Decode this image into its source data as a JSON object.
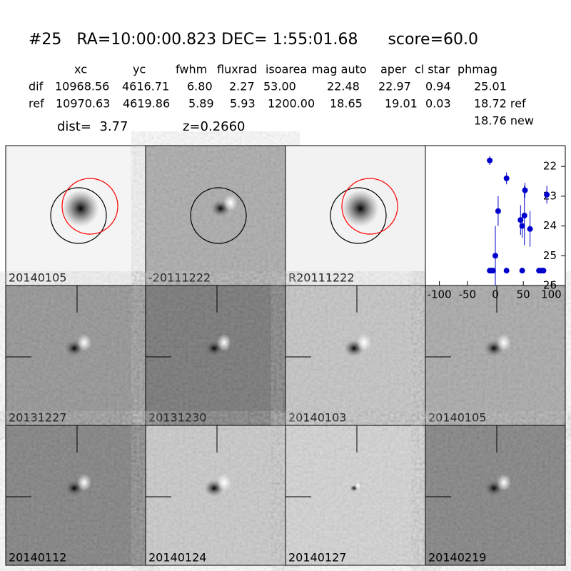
{
  "header": {
    "title": "#25   RA=10:00:00.823 DEC= 1:55:01.68      score=60.0"
  },
  "table": {
    "columns": [
      "xc",
      "yc",
      "fwhm",
      "fluxrad",
      "isoarea",
      "mag auto",
      "aper",
      "cl star",
      "phmag"
    ],
    "rows": [
      {
        "label": "dif",
        "cells": [
          "10968.56",
          "4616.71",
          "6.80",
          "2.27",
          "53.00",
          "22.48",
          "22.97",
          "0.94",
          "25.01"
        ]
      },
      {
        "label": "ref",
        "cells": [
          "10970.63",
          "4619.86",
          "5.89",
          "5.93",
          "1200.00",
          "18.65",
          "19.01",
          "0.03",
          "18.72 ref"
        ]
      }
    ],
    "extra": "18.76 new"
  },
  "info": {
    "dist": "dist=  3.77",
    "z": "z=0.2660"
  },
  "stamps": [
    {
      "label": "20140105"
    },
    {
      "label": "-20111222"
    },
    {
      "label": "R20111222"
    },
    {
      "label": "20131227"
    },
    {
      "label": "20131230"
    },
    {
      "label": "20140103"
    },
    {
      "label": "20140105",
      "color": "#ff0000"
    },
    {
      "label": "20140112"
    },
    {
      "label": "20140124"
    },
    {
      "label": "20140127"
    },
    {
      "label": "20140219"
    }
  ],
  "chart_data": {
    "type": "scatter",
    "color": "#0000cc",
    "x": [
      -10,
      -10,
      -7,
      -4,
      0,
      5,
      20,
      20,
      45,
      48,
      48,
      52,
      53,
      62,
      78,
      82,
      86,
      92
    ],
    "values": [
      21.8,
      25.5,
      25.5,
      25.5,
      25.0,
      23.5,
      22.4,
      25.5,
      23.8,
      24.0,
      25.5,
      23.65,
      22.8,
      24.1,
      25.5,
      25.5,
      25.5,
      22.95
    ],
    "errors": [
      0.15,
      0,
      0,
      0,
      1.0,
      0.5,
      0.2,
      0,
      0.5,
      0.4,
      0,
      1.0,
      0.25,
      0.6,
      0,
      0,
      0,
      0.3
    ],
    "xlim": [
      -125,
      125
    ],
    "ylim": [
      21.3,
      26
    ],
    "y_inverted": true,
    "xticks": [
      -100,
      -50,
      0,
      50,
      100
    ],
    "yticks": [
      22,
      23,
      24,
      25,
      26
    ]
  }
}
